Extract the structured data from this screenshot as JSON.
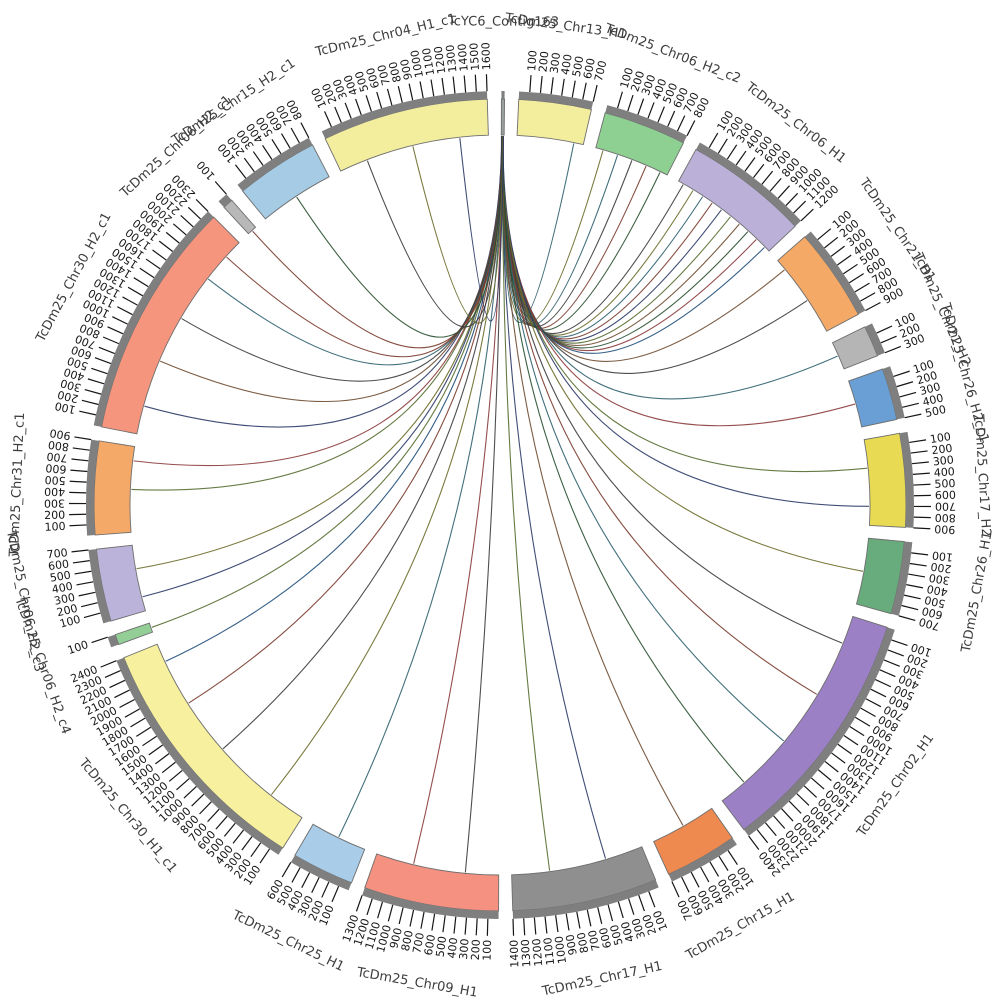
{
  "chart_data": {
    "type": "circos",
    "title": "",
    "center": [
      500,
      505
    ],
    "radii": {
      "band_inner": 370,
      "band_outer": 406,
      "strip_outer": 414,
      "tick_outer": 431,
      "tick_label": 435,
      "name_label": 484
    },
    "gap_deg": 2,
    "start_deg": 0.2,
    "tick_interval": 100,
    "strip_color": "#7f7f7f",
    "band_stroke": "#6e6e6e",
    "tick_color": "#161616",
    "segments": [
      {
        "name": "TcYC6_Contig163",
        "size": 30,
        "color": "#9aa0a0"
      },
      {
        "name": "TcDm25_Chr13_H1",
        "size": 700,
        "color": "#f3ed9e"
      },
      {
        "name": "TcDm25_Chr06_H2_c2",
        "size": 800,
        "color": "#8ecf92"
      },
      {
        "name": "TcDm25_Chr06_H1",
        "size": 1200,
        "color": "#bab0d8"
      },
      {
        "name": "TcDm25_Chr21_H1",
        "size": 900,
        "color": "#f4aa66"
      },
      {
        "name": "TcDm25_Chr21_H2",
        "size": 300,
        "color": "#b5b5b5"
      },
      {
        "name": "TcDm25_Chr26_H2_c1",
        "size": 500,
        "color": "#699fd4"
      },
      {
        "name": "TcDm25_Chr17_H2",
        "size": 900,
        "color": "#e8da52"
      },
      {
        "name": "TcDm25_Chr26_H1",
        "size": 700,
        "color": "#68ab7c"
      },
      {
        "name": "TcDm25_Chr02_H1",
        "size": 2400,
        "color": "#9c80c6"
      },
      {
        "name": "TcDm25_Chr15_H1",
        "size": 700,
        "color": "#ee8a50"
      },
      {
        "name": "TcDm25_Chr17_H1",
        "size": 1400,
        "color": "#8f8f8f"
      },
      {
        "name": "TcDm25_Chr09_H1",
        "size": 1300,
        "color": "#f59180"
      },
      {
        "name": "TcDm25_Chr25_H1",
        "size": 600,
        "color": "#a9cde8"
      },
      {
        "name": "TcDm25_Chr30_H1_c1",
        "size": 2400,
        "color": "#f6f09f"
      },
      {
        "name": "TcDm25_Chr06_H2_c4",
        "size": 100,
        "color": "#93ce96"
      },
      {
        "name": "TcDm25_Chr06_H2_c3",
        "size": 700,
        "color": "#bcb3da"
      },
      {
        "name": "TcDm25_Chr31_H2_c1",
        "size": 900,
        "color": "#f4a968"
      },
      {
        "name": "TcDm25_Chr30_H2_c1",
        "size": 2300,
        "color": "#f5957e"
      },
      {
        "name": "TcDm25_Chr06_H2_c1",
        "size": 100,
        "color": "#b8b8b8"
      },
      {
        "name": "TcDm25_Chr15_H2_c1",
        "size": 800,
        "color": "#a5cbe5"
      },
      {
        "name": "TcDm25_Chr04_H1_c1",
        "size": 1600,
        "color": "#f3ed9e"
      }
    ],
    "links_source": "TcYC6_Contig163",
    "links": [
      {
        "t": "TcDm25_Chr06_H1",
        "p": 60,
        "sp": 2,
        "c": "#3b3b3b"
      },
      {
        "t": "TcDm25_Chr06_H1",
        "p": 180,
        "sp": 4,
        "c": "#6b6b2a"
      },
      {
        "t": "TcDm25_Chr06_H1",
        "p": 300,
        "sp": 6,
        "c": "#2e5f6e"
      },
      {
        "t": "TcDm25_Chr06_H1",
        "p": 420,
        "sp": 8,
        "c": "#7a3b2e"
      },
      {
        "t": "TcDm25_Chr06_H1",
        "p": 540,
        "sp": 10,
        "c": "#2b3a67"
      },
      {
        "t": "TcDm25_Chr06_H1",
        "p": 660,
        "sp": 12,
        "c": "#556b2f"
      },
      {
        "t": "TcDm25_Chr06_H1",
        "p": 780,
        "sp": 14,
        "c": "#6e4a2f"
      },
      {
        "t": "TcDm25_Chr06_H1",
        "p": 900,
        "sp": 16,
        "c": "#274e2e"
      },
      {
        "t": "TcDm25_Chr06_H1",
        "p": 1020,
        "sp": 18,
        "c": "#8b3a3a"
      },
      {
        "t": "TcDm25_Chr06_H1",
        "p": 1140,
        "sp": 20,
        "c": "#1f4e79"
      },
      {
        "t": "TcDm25_Chr06_H2_c2",
        "p": 80,
        "sp": 3,
        "c": "#6b6b2a"
      },
      {
        "t": "TcDm25_Chr06_H2_c2",
        "p": 240,
        "sp": 7,
        "c": "#2e5f6e"
      },
      {
        "t": "TcDm25_Chr06_H2_c2",
        "p": 400,
        "sp": 11,
        "c": "#3b3b3b"
      },
      {
        "t": "TcDm25_Chr06_H2_c2",
        "p": 560,
        "sp": 15,
        "c": "#7a3b2e"
      },
      {
        "t": "TcDm25_Chr06_H2_c2",
        "p": 720,
        "sp": 19,
        "c": "#274e2e"
      },
      {
        "t": "TcDm25_Chr06_H2_c3",
        "p": 150,
        "sp": 5,
        "c": "#2b3a67"
      },
      {
        "t": "TcDm25_Chr06_H2_c3",
        "p": 450,
        "sp": 13,
        "c": "#6b6b2a"
      },
      {
        "t": "TcDm25_Chr06_H2_c4",
        "p": 50,
        "sp": 9,
        "c": "#556b2f"
      },
      {
        "t": "TcDm25_Chr06_H2_c1",
        "p": 50,
        "sp": 17,
        "c": "#7a3b2e"
      },
      {
        "t": "TcDm25_Chr13_H1",
        "p": 600,
        "sp": 21,
        "c": "#2e5f6e"
      },
      {
        "t": "TcDm25_Chr21_H1",
        "p": 120,
        "sp": 4,
        "c": "#6e4a2f"
      },
      {
        "t": "TcDm25_Chr21_H1",
        "p": 520,
        "sp": 12,
        "c": "#3b3b3b"
      },
      {
        "t": "TcDm25_Chr21_H2",
        "p": 150,
        "sp": 8,
        "c": "#2e5f6e"
      },
      {
        "t": "TcDm25_Chr26_H2_c1",
        "p": 250,
        "sp": 14,
        "c": "#8b3a3a"
      },
      {
        "t": "TcDm25_Chr17_H2",
        "p": 300,
        "sp": 6,
        "c": "#556b2f"
      },
      {
        "t": "TcDm25_Chr17_H2",
        "p": 700,
        "sp": 18,
        "c": "#2b3a67"
      },
      {
        "t": "TcDm25_Chr26_H1",
        "p": 350,
        "sp": 10,
        "c": "#6b6b2a"
      },
      {
        "t": "TcDm25_Chr02_H1",
        "p": 300,
        "sp": 5,
        "c": "#3b3b3b"
      },
      {
        "t": "TcDm25_Chr02_H1",
        "p": 900,
        "sp": 9,
        "c": "#7a3b2e"
      },
      {
        "t": "TcDm25_Chr02_H1",
        "p": 1500,
        "sp": 13,
        "c": "#2e5f6e"
      },
      {
        "t": "TcDm25_Chr02_H1",
        "p": 2100,
        "sp": 17,
        "c": "#274e2e"
      },
      {
        "t": "TcDm25_Chr15_H1",
        "p": 350,
        "sp": 11,
        "c": "#6e4a2f"
      },
      {
        "t": "TcDm25_Chr17_H1",
        "p": 400,
        "sp": 7,
        "c": "#2b3a67"
      },
      {
        "t": "TcDm25_Chr17_H1",
        "p": 1000,
        "sp": 15,
        "c": "#556b2f"
      },
      {
        "t": "TcDm25_Chr09_H1",
        "p": 350,
        "sp": 6,
        "c": "#3b3b3b"
      },
      {
        "t": "TcDm25_Chr09_H1",
        "p": 900,
        "sp": 16,
        "c": "#8b3a3a"
      },
      {
        "t": "TcDm25_Chr25_H1",
        "p": 300,
        "sp": 12,
        "c": "#2e5f6e"
      },
      {
        "t": "TcDm25_Chr30_H1_c1",
        "p": 400,
        "sp": 5,
        "c": "#6b6b2a"
      },
      {
        "t": "TcDm25_Chr30_H1_c1",
        "p": 1100,
        "sp": 9,
        "c": "#3b3b3b"
      },
      {
        "t": "TcDm25_Chr30_H1_c1",
        "p": 1700,
        "sp": 13,
        "c": "#7a3b2e"
      },
      {
        "t": "TcDm25_Chr30_H1_c1",
        "p": 2200,
        "sp": 19,
        "c": "#1f4e79"
      },
      {
        "t": "TcDm25_Chr31_H2_c1",
        "p": 450,
        "sp": 8,
        "c": "#556b2f"
      },
      {
        "t": "TcDm25_Chr31_H2_c1",
        "p": 750,
        "sp": 14,
        "c": "#8b3a3a"
      },
      {
        "t": "TcDm25_Chr30_H2_c1",
        "p": 300,
        "sp": 4,
        "c": "#2b3a67"
      },
      {
        "t": "TcDm25_Chr30_H2_c1",
        "p": 800,
        "sp": 10,
        "c": "#6e4a2f"
      },
      {
        "t": "TcDm25_Chr30_H2_c1",
        "p": 1300,
        "sp": 16,
        "c": "#3b3b3b"
      },
      {
        "t": "TcDm25_Chr30_H2_c1",
        "p": 1800,
        "sp": 20,
        "c": "#2e5f6e"
      },
      {
        "t": "TcDm25_Chr30_H2_c1",
        "p": 2100,
        "sp": 22,
        "c": "#7a3b2e"
      },
      {
        "t": "TcDm25_Chr15_H2_c1",
        "p": 400,
        "sp": 11,
        "c": "#274e2e"
      },
      {
        "t": "TcDm25_Chr04_H1_c1",
        "p": 300,
        "sp": 7,
        "c": "#3b3b3b"
      },
      {
        "t": "TcDm25_Chr04_H1_c1",
        "p": 800,
        "sp": 15,
        "c": "#6b6b2a"
      },
      {
        "t": "TcDm25_Chr04_H1_c1",
        "p": 1300,
        "sp": 21,
        "c": "#2b3a67"
      }
    ]
  }
}
